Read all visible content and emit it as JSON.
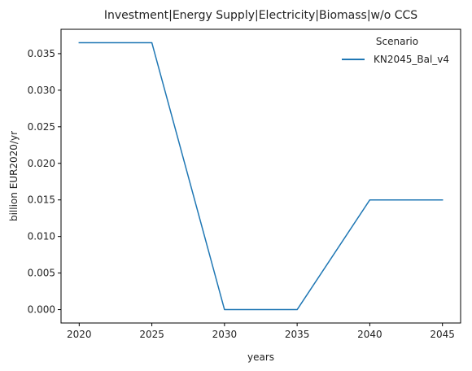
{
  "chart_data": {
    "type": "line",
    "title": "Investment|Energy Supply|Electricity|Biomass|w/o CCS",
    "xlabel": "years",
    "ylabel": "billion EUR2020/yr",
    "x": [
      2020,
      2025,
      2030,
      2035,
      2040,
      2045
    ],
    "x_ticks": [
      "2020",
      "2025",
      "2030",
      "2035",
      "2040",
      "2045"
    ],
    "y_ticks": [
      "0.000",
      "0.005",
      "0.010",
      "0.015",
      "0.020",
      "0.025",
      "0.030",
      "0.035"
    ],
    "xlim": [
      2018.75,
      2046.25
    ],
    "ylim": [
      -0.00183,
      0.03833
    ],
    "grid": false,
    "legend": {
      "title": "Scenario",
      "placement": "top-right"
    },
    "series": [
      {
        "name": "KN2045_Bal_v4",
        "color": "#1f77b4",
        "values": [
          0.0365,
          0.0365,
          0.0,
          0.0,
          0.015,
          0.015
        ]
      }
    ]
  }
}
